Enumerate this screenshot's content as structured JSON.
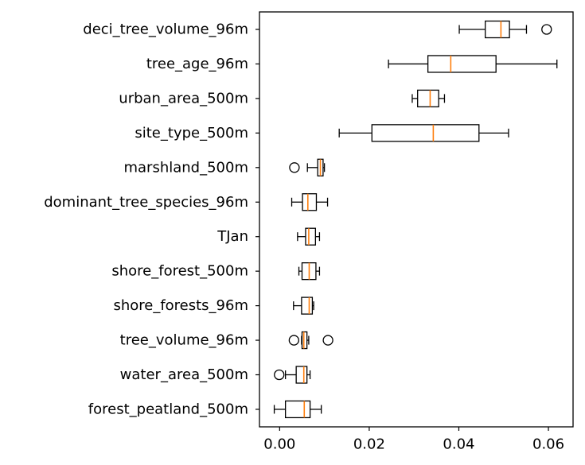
{
  "chart_data": {
    "type": "boxplot",
    "orientation": "horizontal",
    "title": "",
    "xlabel": "",
    "ylabel": "",
    "xlim": [
      -0.0045,
      0.0655
    ],
    "xticks": [
      0.0,
      0.02,
      0.04,
      0.06
    ],
    "xtick_labels": [
      "0.00",
      "0.02",
      "0.04",
      "0.06"
    ],
    "grid": false,
    "colors": {
      "box": "#000000",
      "median": "#ff7f0e",
      "axis": "#000000"
    },
    "categories": [
      "deci_tree_volume_96m",
      "tree_age_96m",
      "urban_area_500m",
      "site_type_500m",
      "marshland_500m",
      "dominant_tree_species_96m",
      "TJan",
      "shore_forest_500m",
      "shore_forests_96m",
      "tree_volume_96m",
      "water_area_500m",
      "forest_peatland_500m"
    ],
    "boxes": [
      {
        "whisker_low": 0.0401,
        "q1": 0.0459,
        "median": 0.0494,
        "q3": 0.0513,
        "whisker_high": 0.0551,
        "outliers": [
          0.0596
        ]
      },
      {
        "whisker_low": 0.0243,
        "q1": 0.0331,
        "median": 0.0382,
        "q3": 0.0483,
        "whisker_high": 0.0619,
        "outliers": []
      },
      {
        "whisker_low": 0.0296,
        "q1": 0.0308,
        "median": 0.0336,
        "q3": 0.0355,
        "whisker_high": 0.0368,
        "outliers": []
      },
      {
        "whisker_low": 0.0133,
        "q1": 0.0206,
        "median": 0.0343,
        "q3": 0.0445,
        "whisker_high": 0.0511,
        "outliers": []
      },
      {
        "whisker_low": 0.0062,
        "q1": 0.0085,
        "median": 0.0091,
        "q3": 0.0097,
        "whisker_high": 0.01,
        "outliers": [
          0.0033
        ]
      },
      {
        "whisker_low": 0.0027,
        "q1": 0.0051,
        "median": 0.0063,
        "q3": 0.0082,
        "whisker_high": 0.0107,
        "outliers": []
      },
      {
        "whisker_low": 0.004,
        "q1": 0.0058,
        "median": 0.0065,
        "q3": 0.008,
        "whisker_high": 0.0089,
        "outliers": []
      },
      {
        "whisker_low": 0.0043,
        "q1": 0.005,
        "median": 0.0066,
        "q3": 0.0081,
        "whisker_high": 0.0089,
        "outliers": []
      },
      {
        "whisker_low": 0.0031,
        "q1": 0.0049,
        "median": 0.0066,
        "q3": 0.0073,
        "whisker_high": 0.0076,
        "outliers": []
      },
      {
        "whisker_low": 0.0049,
        "q1": 0.005,
        "median": 0.0054,
        "q3": 0.0061,
        "whisker_high": 0.0065,
        "outliers": [
          0.0032,
          0.0108
        ]
      },
      {
        "whisker_low": 0.0013,
        "q1": 0.0037,
        "median": 0.0054,
        "q3": 0.0061,
        "whisker_high": 0.0068,
        "outliers": [
          -0.0001
        ]
      },
      {
        "whisker_low": -0.0012,
        "q1": 0.0013,
        "median": 0.0055,
        "q3": 0.0068,
        "whisker_high": 0.0093,
        "outliers": []
      }
    ]
  }
}
